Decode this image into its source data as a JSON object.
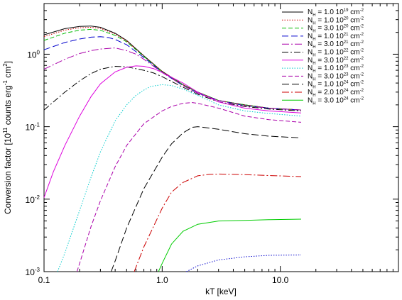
{
  "chart_data": {
    "type": "line",
    "title": "",
    "xlabel": "kT [keV]",
    "ylabel": "Conversion factor [10^11 counts erg^-1 cm^2]",
    "ylabel_parts": {
      "pre": "Conversion factor [10",
      "exp1": "11",
      "mid": " counts erg",
      "exp2": "-1",
      "mid2": " cm",
      "exp3": "2",
      "post": "]"
    },
    "xscale": "log",
    "yscale": "log",
    "xlim": [
      0.1,
      100
    ],
    "ylim": [
      0.001,
      5
    ],
    "grid": false,
    "legend_position": "top-right",
    "x_ticks": [
      {
        "value": 0.1,
        "label": "0.1"
      },
      {
        "value": 1,
        "label": "1.0"
      },
      {
        "value": 10,
        "label": "10.0"
      }
    ],
    "y_ticks": [
      {
        "value": 0.001,
        "base": "10",
        "exp": "-3"
      },
      {
        "value": 0.01,
        "base": "10",
        "exp": "-2"
      },
      {
        "value": 0.1,
        "base": "10",
        "exp": "-1"
      },
      {
        "value": 1,
        "base": "10",
        "exp": "0"
      }
    ],
    "legend_unit": "cm",
    "legend_unit_exp": "-2",
    "series": [
      {
        "label_pre": "N",
        "label_sub": "H",
        "label_val": " = 1.0 10",
        "label_exp": "19",
        "color": "#000000",
        "dash": "",
        "x": [
          0.1,
          0.15,
          0.2,
          0.25,
          0.3,
          0.4,
          0.5,
          0.7,
          1.0,
          1.5,
          2,
          3,
          5,
          8,
          15
        ],
        "y": [
          1.85,
          2.25,
          2.42,
          2.45,
          2.35,
          1.95,
          1.55,
          0.95,
          0.58,
          0.38,
          0.3,
          0.23,
          0.2,
          0.18,
          0.17
        ]
      },
      {
        "label_pre": "N",
        "label_sub": "H",
        "label_val": " = 1.0 10",
        "label_exp": "20",
        "color": "#cc0000",
        "dash": "1.5,2",
        "x": [
          0.1,
          0.15,
          0.2,
          0.25,
          0.3,
          0.4,
          0.5,
          0.7,
          1.0,
          1.5,
          2,
          3,
          5,
          8,
          15
        ],
        "y": [
          1.75,
          2.15,
          2.32,
          2.35,
          2.27,
          1.9,
          1.52,
          0.94,
          0.58,
          0.38,
          0.3,
          0.23,
          0.2,
          0.18,
          0.17
        ]
      },
      {
        "label_pre": "N",
        "label_sub": "H",
        "label_val": " = 3.0 10",
        "label_exp": "20",
        "color": "#00bb00",
        "dash": "6,3",
        "x": [
          0.1,
          0.15,
          0.2,
          0.25,
          0.3,
          0.4,
          0.5,
          0.7,
          1.0,
          1.5,
          2,
          3,
          5,
          8,
          15
        ],
        "y": [
          1.55,
          1.95,
          2.15,
          2.2,
          2.14,
          1.82,
          1.48,
          0.93,
          0.57,
          0.38,
          0.3,
          0.23,
          0.2,
          0.18,
          0.17
        ]
      },
      {
        "label_pre": "N",
        "label_sub": "H",
        "label_val": " = 1.0 10",
        "label_exp": "21",
        "color": "#0000cc",
        "dash": "9,4",
        "x": [
          0.1,
          0.15,
          0.2,
          0.25,
          0.3,
          0.35,
          0.4,
          0.5,
          0.7,
          1.0,
          1.5,
          2,
          3,
          5,
          8,
          15
        ],
        "y": [
          1.15,
          1.45,
          1.62,
          1.72,
          1.74,
          1.7,
          1.6,
          1.35,
          0.9,
          0.56,
          0.37,
          0.29,
          0.23,
          0.195,
          0.18,
          0.17
        ]
      },
      {
        "label_pre": "N",
        "label_sub": "H",
        "label_val": " = 3.0 10",
        "label_exp": "21",
        "color": "#aa00aa",
        "dash": "10,3,2,3",
        "x": [
          0.1,
          0.15,
          0.2,
          0.25,
          0.3,
          0.4,
          0.5,
          0.6,
          0.7,
          1.0,
          1.5,
          2,
          3,
          5,
          8,
          15
        ],
        "y": [
          0.62,
          0.85,
          1.02,
          1.12,
          1.18,
          1.22,
          1.12,
          1.0,
          0.85,
          0.56,
          0.37,
          0.29,
          0.23,
          0.195,
          0.18,
          0.17
        ]
      },
      {
        "label_pre": "N",
        "label_sub": "H",
        "label_val": " = 1.0 10",
        "label_exp": "22",
        "color": "#000000",
        "dash": "9,3,2,3",
        "x": [
          0.1,
          0.15,
          0.2,
          0.25,
          0.3,
          0.4,
          0.5,
          0.6,
          0.7,
          0.85,
          1.0,
          1.5,
          2,
          3,
          5,
          8,
          15
        ],
        "y": [
          0.17,
          0.3,
          0.43,
          0.54,
          0.62,
          0.68,
          0.67,
          0.63,
          0.6,
          0.55,
          0.49,
          0.35,
          0.28,
          0.22,
          0.19,
          0.175,
          0.165
        ]
      },
      {
        "label_pre": "N",
        "label_sub": "H",
        "label_val": " = 3.0 10",
        "label_exp": "22",
        "color": "#dd00dd",
        "dash": "",
        "x": [
          0.1,
          0.12,
          0.15,
          0.2,
          0.25,
          0.3,
          0.4,
          0.5,
          0.6,
          0.7,
          0.85,
          1.0,
          1.5,
          2,
          3,
          5,
          8,
          15
        ],
        "y": [
          0.0105,
          0.024,
          0.055,
          0.14,
          0.26,
          0.39,
          0.57,
          0.66,
          0.69,
          0.68,
          0.63,
          0.56,
          0.4,
          0.3,
          0.22,
          0.18,
          0.165,
          0.155
        ]
      },
      {
        "label_pre": "N",
        "label_sub": "H",
        "label_val": " = 1.0 10",
        "label_exp": "23",
        "color": "#00cccc",
        "dash": "1.5,2",
        "x": [
          0.13,
          0.15,
          0.2,
          0.25,
          0.3,
          0.4,
          0.5,
          0.6,
          0.7,
          0.8,
          1.0,
          1.2,
          1.5,
          2,
          3,
          5,
          8,
          15
        ],
        "y": [
          0.001,
          0.0018,
          0.007,
          0.02,
          0.045,
          0.12,
          0.2,
          0.27,
          0.32,
          0.36,
          0.38,
          0.37,
          0.33,
          0.27,
          0.2,
          0.165,
          0.152,
          0.14
        ]
      },
      {
        "label_pre": "N",
        "label_sub": "H",
        "label_val": " = 3.0 10",
        "label_exp": "23",
        "color": "#aa00aa",
        "dash": "6,3",
        "x": [
          0.19,
          0.2,
          0.25,
          0.3,
          0.4,
          0.5,
          0.7,
          1.0,
          1.2,
          1.5,
          1.8,
          2,
          3,
          5,
          8,
          15
        ],
        "y": [
          0.001,
          0.0013,
          0.0042,
          0.0095,
          0.028,
          0.055,
          0.11,
          0.165,
          0.19,
          0.21,
          0.215,
          0.21,
          0.18,
          0.14,
          0.125,
          0.115
        ]
      },
      {
        "label_pre": "N",
        "label_sub": "H",
        "label_val": " = 1.0 10",
        "label_exp": "24",
        "color": "#000000",
        "dash": "10,4",
        "x": [
          0.37,
          0.4,
          0.5,
          0.7,
          1.0,
          1.2,
          1.5,
          1.8,
          2.0,
          3,
          5,
          8,
          15
        ],
        "y": [
          0.001,
          0.0014,
          0.004,
          0.014,
          0.038,
          0.058,
          0.082,
          0.098,
          0.1,
          0.092,
          0.08,
          0.074,
          0.07
        ]
      },
      {
        "label_pre": "N",
        "label_sub": "H",
        "label_val": " = 2.0 10",
        "label_exp": "24",
        "color": "#cc0000",
        "dash": "10,3,2,3",
        "x": [
          0.58,
          0.7,
          1.0,
          1.2,
          1.5,
          2,
          2.5,
          3,
          5,
          8,
          15
        ],
        "y": [
          0.001,
          0.0022,
          0.0075,
          0.0125,
          0.017,
          0.021,
          0.022,
          0.0222,
          0.0218,
          0.0212,
          0.0205
        ]
      },
      {
        "label_pre": "N",
        "label_sub": "H",
        "label_val": " = 3.0 10",
        "label_exp": "24",
        "color": "#00cc00",
        "dash": "",
        "x": [
          0.93,
          1.0,
          1.2,
          1.5,
          2,
          3,
          5,
          8,
          15
        ],
        "y": [
          0.001,
          0.0013,
          0.0024,
          0.0036,
          0.0045,
          0.005,
          0.0051,
          0.0052,
          0.0053
        ]
      },
      {
        "label_pre": "",
        "label_sub": "",
        "label_val": "",
        "label_exp": "",
        "color": "#0000cc",
        "dash": "1.5,2",
        "x": [
          1.6,
          2,
          3,
          5,
          8,
          15
        ],
        "y": [
          0.001,
          0.0012,
          0.00145,
          0.0016,
          0.00168,
          0.0017
        ]
      }
    ]
  }
}
